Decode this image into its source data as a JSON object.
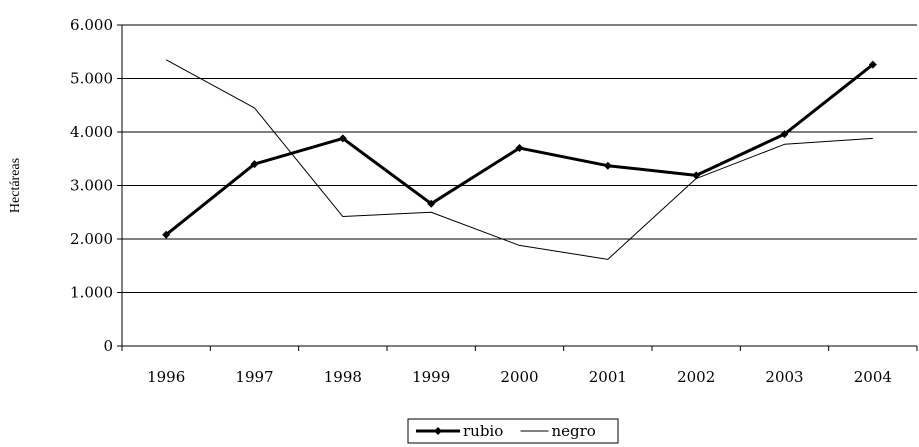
{
  "chart_data": {
    "type": "line",
    "title": "",
    "xlabel": "",
    "ylabel": "Hectáreas",
    "categories": [
      "1996",
      "1997",
      "1998",
      "1999",
      "2000",
      "2001",
      "2002",
      "2003",
      "2004"
    ],
    "ylim": [
      0,
      6000
    ],
    "yticks": [
      0,
      1000,
      2000,
      3000,
      4000,
      5000,
      6000
    ],
    "ytick_labels": [
      "0",
      "1.000",
      "2.000",
      "3.000",
      "4.000",
      "5.000",
      "6.000"
    ],
    "grid": true,
    "legend_position": "bottom",
    "series": [
      {
        "name": "rubio",
        "values": [
          2080,
          3400,
          3880,
          2660,
          3700,
          3370,
          3190,
          3960,
          5260
        ],
        "color": "#000000",
        "style": "thick-with-markers"
      },
      {
        "name": "negro",
        "values": [
          5350,
          4450,
          2420,
          2500,
          1880,
          1620,
          3130,
          3770,
          3880
        ],
        "color": "#000000",
        "style": "thin"
      }
    ]
  }
}
